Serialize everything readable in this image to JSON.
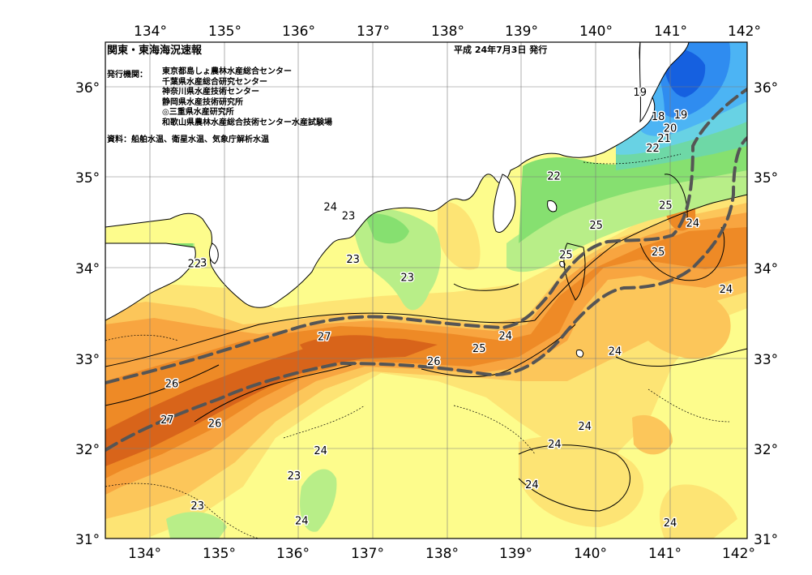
{
  "header": {
    "title": "関東・東海海況速報",
    "issued": "平成 24年7月3日 発行",
    "publishers_label": "発行機関：",
    "publishers": [
      "東京都島しょ農林水産総合センター",
      "千葉県水産総合研究センター",
      "神奈川県水産技術センター",
      "静岡県水産技術研究所",
      "◎三重県水産研究所",
      "和歌山県農林水産総合技術センター水産試験場"
    ],
    "source": "資料：船舶水温、衛星水温、気象庁解析水温"
  },
  "axes": {
    "lon_labels": [
      "134°",
      "135°",
      "136°",
      "137°",
      "138°",
      "139°",
      "140°",
      "141°",
      "142°"
    ],
    "lat_labels": [
      "36°",
      "35°",
      "34°",
      "33°",
      "32°",
      "31°"
    ],
    "lat_labels_right": [
      "36°",
      "35°",
      "34°",
      "33°",
      "32°",
      "31°"
    ]
  },
  "colors": {
    "land": "#ffffff",
    "sst_17": "#1560e0",
    "sst_18": "#2f8cf0",
    "sst_19": "#4cb4f4",
    "sst_20": "#68d2e4",
    "sst_21": "#6ed8a6",
    "sst_22": "#86e070",
    "sst_23": "#b8ee88",
    "sst_24": "#fdfc8c",
    "sst_24_5": "#fde474",
    "sst_25": "#fcc65a",
    "sst_25_5": "#f8a540",
    "sst_26": "#ee8a26",
    "sst_27": "#d8641a",
    "current_axis": "#555555"
  },
  "isotherm_labels": [
    {
      "text": "19",
      "lon": 140.58,
      "lat": 35.95
    },
    {
      "text": "18",
      "lon": 140.82,
      "lat": 35.68
    },
    {
      "text": "19",
      "lon": 141.12,
      "lat": 35.7
    },
    {
      "text": "20",
      "lon": 140.98,
      "lat": 35.55
    },
    {
      "text": "21",
      "lon": 140.9,
      "lat": 35.44
    },
    {
      "text": "22",
      "lon": 140.75,
      "lat": 35.33
    },
    {
      "text": "22",
      "lon": 139.44,
      "lat": 35.02
    },
    {
      "text": "24",
      "lon": 136.48,
      "lat": 34.68
    },
    {
      "text": "23",
      "lon": 136.72,
      "lat": 34.58
    },
    {
      "text": "25",
      "lon": 140.0,
      "lat": 34.48
    },
    {
      "text": "25",
      "lon": 140.92,
      "lat": 34.7
    },
    {
      "text": "24",
      "lon": 141.28,
      "lat": 34.5
    },
    {
      "text": "25",
      "lon": 139.6,
      "lat": 34.15
    },
    {
      "text": "25",
      "lon": 140.82,
      "lat": 34.18
    },
    {
      "text": "22",
      "lon": 134.68,
      "lat": 34.05
    },
    {
      "text": "3",
      "lon": 134.8,
      "lat": 34.06
    },
    {
      "text": "23",
      "lon": 136.78,
      "lat": 34.1
    },
    {
      "text": "23",
      "lon": 137.5,
      "lat": 33.9
    },
    {
      "text": "24",
      "lon": 141.72,
      "lat": 33.77
    },
    {
      "text": "27",
      "lon": 136.4,
      "lat": 33.24
    },
    {
      "text": "24",
      "lon": 138.8,
      "lat": 33.25
    },
    {
      "text": "25",
      "lon": 138.45,
      "lat": 33.11
    },
    {
      "text": "26",
      "lon": 137.85,
      "lat": 32.97
    },
    {
      "text": "24",
      "lon": 140.25,
      "lat": 33.08
    },
    {
      "text": "26",
      "lon": 134.38,
      "lat": 32.72
    },
    {
      "text": "27",
      "lon": 134.32,
      "lat": 32.32
    },
    {
      "text": "26",
      "lon": 134.95,
      "lat": 32.28
    },
    {
      "text": "24",
      "lon": 139.85,
      "lat": 32.25
    },
    {
      "text": "24",
      "lon": 136.35,
      "lat": 31.98
    },
    {
      "text": "24",
      "lon": 139.45,
      "lat": 32.05
    },
    {
      "text": "23",
      "lon": 136.0,
      "lat": 31.7
    },
    {
      "text": "24",
      "lon": 139.15,
      "lat": 31.6
    },
    {
      "text": "23",
      "lon": 134.72,
      "lat": 31.37
    },
    {
      "text": "24",
      "lon": 136.1,
      "lat": 31.2
    },
    {
      "text": "24",
      "lon": 140.98,
      "lat": 31.18
    }
  ]
}
